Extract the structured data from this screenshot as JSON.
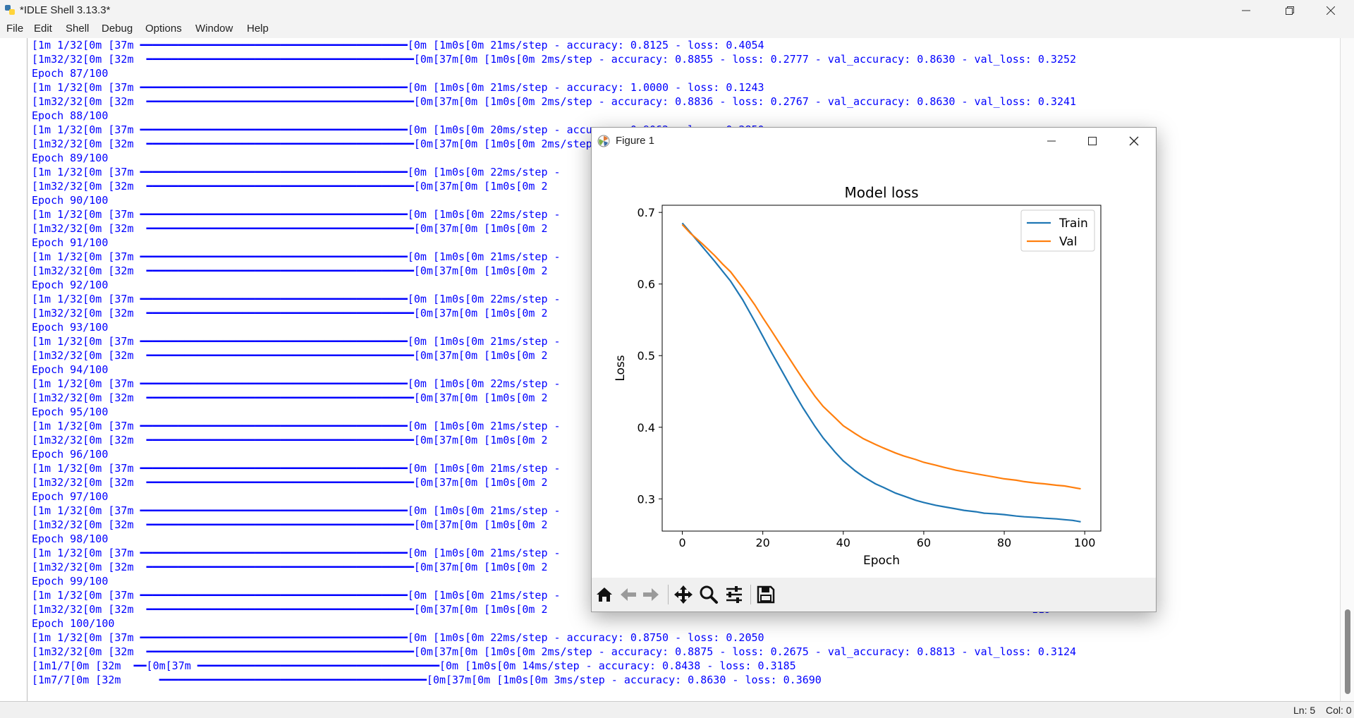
{
  "window": {
    "title": "*IDLE Shell 3.13.3*"
  },
  "menu": [
    "File",
    "Edit",
    "Shell",
    "Debug",
    "Options",
    "Window",
    "Help"
  ],
  "shell_lines": [
    "\u0016[1m 1/32\u0016[0m \u0016[37m ━━━━━━━━━━━━━━━━━━━━━━━━━━━━━━━━━━━━━━━━━━\u0016[0m \u0016[1m0s\u0016[0m 21ms/step - accuracy: 0.8125 - loss: 0.4054  \u0016\u0016\u0016\u0016\u0016\u0016\u0016\u0016\u0016\u0016\u0016\u0016\u0016\u0016\u0016\u0016\u0016\u0016\u0016\u0016\u0016\u0016\u0016\u0016\u0016\u0016\u0016\u0016\u0016\u0016\u0016\u0016\u0016\u0016\u0016\u0016\u0016\u0016\u0016\u0016\u0016\u0016\u0016\u0016\u0016\u0016\u0016",
    "\u0016\u0016\u0016[1m32/32\u0016[0m \u0016[32m  ━━━━━━━━━━━━━━━━━━━━━━━━━━━━━━━━━━━━━━━━━━\u0016[0m\u0016[37m\u0016[0m \u0016[1m0s\u0016[0m 2ms/step - accuracy: 0.8855 - loss: 0.2777 - val_accuracy: 0.8630 - val_loss: 0.3252",
    "Epoch 87/100",
    "\u0016[1m 1/32\u0016[0m \u0016[37m ━━━━━━━━━━━━━━━━━━━━━━━━━━━━━━━━━━━━━━━━━━\u0016[0m \u0016[1m0s\u0016[0m 21ms/step - accuracy: 1.0000 - loss: 0.1243  \u0016\u0016\u0016\u0016\u0016\u0016\u0016\u0016\u0016\u0016\u0016\u0016\u0016\u0016\u0016\u0016\u0016\u0016\u0016\u0016\u0016\u0016\u0016\u0016\u0016\u0016\u0016\u0016\u0016\u0016\u0016\u0016\u0016\u0016\u0016\u0016\u0016\u0016\u0016\u0016\u0016\u0016\u0016\u0016\u0016\u0016\u0016",
    "\u0016\u0016\u0016[1m32/32\u0016[0m \u0016[32m  ━━━━━━━━━━━━━━━━━━━━━━━━━━━━━━━━━━━━━━━━━━\u0016[0m\u0016[37m\u0016[0m \u0016[1m0s\u0016[0m 2ms/step - accuracy: 0.8836 - loss: 0.2767 - val_accuracy: 0.8630 - val_loss: 0.3241",
    "Epoch 88/100",
    "\u0016[1m 1/32\u0016[0m \u0016[37m ━━━━━━━━━━━━━━━━━━━━━━━━━━━━━━━━━━━━━━━━━━\u0016[0m \u0016[1m0s\u0016[0m 20ms/step - accuracy: 0.9062 - loss: 0.2850  \u0016\u0016\u0016\u0016\u0016\u0016\u0016\u0016\u0016\u0016\u0016\u0016\u0016\u0016\u0016\u0016\u0016\u0016\u0016\u0016\u0016\u0016\u0016\u0016\u0016\u0016\u0016\u0016\u0016\u0016\u0016\u0016\u0016\u0016\u0016\u0016\u0016\u0016\u0016\u0016\u0016\u0016\u0016\u0016\u0016\u0016\u0016",
    "\u0016\u0016\u0016[1m32/32\u0016[0m \u0016[32m  ━━━━━━━━━━━━━━━━━━━━━━━━━━━━━━━━━━━━━━━━━━\u0016[0m\u0016[37m\u0016[0m \u0016[1m0s\u0016[0m 2ms/step - accuracy: 0.8858 - loss: 0.2755 - val_accuracy: 0.8630 - val_loss: 0.3231",
    "Epoch 89/100",
    "\u0016[1m 1/32\u0016[0m \u0016[37m ━━━━━━━━━━━━━━━━━━━━━━━━━━━━━━━━━━━━━━━━━━\u0016[0m \u0016[1m0s\u0016[0m 22ms/step -",
    "\u0016\u0016\u0016[1m32/32\u0016[0m \u0016[32m  ━━━━━━━━━━━━━━━━━━━━━━━━━━━━━━━━━━━━━━━━━━\u0016[0m\u0016[37m\u0016[0m \u0016[1m0s\u0016[0m 2                                                                            216",
    "Epoch 90/100",
    "\u0016[1m 1/32\u0016[0m \u0016[37m ━━━━━━━━━━━━━━━━━━━━━━━━━━━━━━━━━━━━━━━━━━\u0016[0m \u0016[1m0s\u0016[0m 22ms/step -",
    "\u0016\u0016\u0016[1m32/32\u0016[0m \u0016[32m  ━━━━━━━━━━━━━━━━━━━━━━━━━━━━━━━━━━━━━━━━━━\u0016[0m\u0016[37m\u0016[0m \u0016[1m0s\u0016[0m 2                                                                            205",
    "Epoch 91/100",
    "\u0016[1m 1/32\u0016[0m \u0016[37m ━━━━━━━━━━━━━━━━━━━━━━━━━━━━━━━━━━━━━━━━━━\u0016[0m \u0016[1m0s\u0016[0m 21ms/step -",
    "\u0016\u0016\u0016[1m32/32\u0016[0m \u0016[32m  ━━━━━━━━━━━━━━━━━━━━━━━━━━━━━━━━━━━━━━━━━━\u0016[0m\u0016[37m\u0016[0m \u0016[1m0s\u0016[0m 2                                                                            197",
    "Epoch 92/100",
    "\u0016[1m 1/32\u0016[0m \u0016[37m ━━━━━━━━━━━━━━━━━━━━━━━━━━━━━━━━━━━━━━━━━━\u0016[0m \u0016[1m0s\u0016[0m 22ms/step -",
    "\u0016\u0016\u0016[1m32/32\u0016[0m \u0016[32m  ━━━━━━━━━━━━━━━━━━━━━━━━━━━━━━━━━━━━━━━━━━\u0016[0m\u0016[37m\u0016[0m \u0016[1m0s\u0016[0m 2                                                                            194",
    "Epoch 93/100",
    "\u0016[1m 1/32\u0016[0m \u0016[37m ━━━━━━━━━━━━━━━━━━━━━━━━━━━━━━━━━━━━━━━━━━\u0016[0m \u0016[1m0s\u0016[0m 21ms/step -",
    "\u0016\u0016\u0016[1m32/32\u0016[0m \u0016[32m  ━━━━━━━━━━━━━━━━━━━━━━━━━━━━━━━━━━━━━━━━━━\u0016[0m\u0016[37m\u0016[0m \u0016[1m0s\u0016[0m 2                                                                            178",
    "Epoch 94/100",
    "\u0016[1m 1/32\u0016[0m \u0016[37m ━━━━━━━━━━━━━━━━━━━━━━━━━━━━━━━━━━━━━━━━━━\u0016[0m \u0016[1m0s\u0016[0m 22ms/step -",
    "\u0016\u0016\u0016[1m32/32\u0016[0m \u0016[32m  ━━━━━━━━━━━━━━━━━━━━━━━━━━━━━━━━━━━━━━━━━━\u0016[0m\u0016[37m\u0016[0m \u0016[1m0s\u0016[0m 2                                                                            176",
    "Epoch 95/100",
    "\u0016[1m 1/32\u0016[0m \u0016[37m ━━━━━━━━━━━━━━━━━━━━━━━━━━━━━━━━━━━━━━━━━━\u0016[0m \u0016[1m0s\u0016[0m 21ms/step -",
    "\u0016\u0016\u0016[1m32/32\u0016[0m \u0016[32m  ━━━━━━━━━━━━━━━━━━━━━━━━━━━━━━━━━━━━━━━━━━\u0016[0m\u0016[37m\u0016[0m \u0016[1m0s\u0016[0m 2                                                                            174",
    "Epoch 96/100",
    "\u0016[1m 1/32\u0016[0m \u0016[37m ━━━━━━━━━━━━━━━━━━━━━━━━━━━━━━━━━━━━━━━━━━\u0016[0m \u0016[1m0s\u0016[0m 21ms/step -",
    "\u0016\u0016\u0016[1m32/32\u0016[0m \u0016[32m  ━━━━━━━━━━━━━━━━━━━━━━━━━━━━━━━━━━━━━━━━━━\u0016[0m\u0016[37m\u0016[0m \u0016[1m0s\u0016[0m 2                                                                            181",
    "Epoch 97/100",
    "\u0016[1m 1/32\u0016[0m \u0016[37m ━━━━━━━━━━━━━━━━━━━━━━━━━━━━━━━━━━━━━━━━━━\u0016[0m \u0016[1m0s\u0016[0m 21ms/step -",
    "\u0016\u0016\u0016[1m32/32\u0016[0m \u0016[32m  ━━━━━━━━━━━━━━━━━━━━━━━━━━━━━━━━━━━━━━━━━━\u0016[0m\u0016[37m\u0016[0m \u0016[1m0s\u0016[0m 2                                                                            148",
    "Epoch 98/100",
    "\u0016[1m 1/32\u0016[0m \u0016[37m ━━━━━━━━━━━━━━━━━━━━━━━━━━━━━━━━━━━━━━━━━━\u0016[0m \u0016[1m0s\u0016[0m 21ms/step -",
    "\u0016\u0016\u0016[1m32/32\u0016[0m \u0016[32m  ━━━━━━━━━━━━━━━━━━━━━━━━━━━━━━━━━━━━━━━━━━\u0016[0m\u0016[37m\u0016[0m \u0016[1m0s\u0016[0m 2                                                                            128",
    "Epoch 99/100",
    "\u0016[1m 1/32\u0016[0m \u0016[37m ━━━━━━━━━━━━━━━━━━━━━━━━━━━━━━━━━━━━━━━━━━\u0016[0m \u0016[1m0s\u0016[0m 21ms/step -",
    "\u0016\u0016\u0016[1m32/32\u0016[0m \u0016[32m  ━━━━━━━━━━━━━━━━━━━━━━━━━━━━━━━━━━━━━━━━━━\u0016[0m\u0016[37m\u0016[0m \u0016[1m0s\u0016[0m 2                                                                            119",
    "Epoch 100/100",
    "\u0016[1m 1/32\u0016[0m \u0016[37m ━━━━━━━━━━━━━━━━━━━━━━━━━━━━━━━━━━━━━━━━━━\u0016[0m \u0016[1m0s\u0016[0m 22ms/step - accuracy: 0.8750 - loss: 0.2050  \u0016\u0016\u0016\u0016\u0016\u0016\u0016\u0016\u0016\u0016\u0016\u0016\u0016\u0016\u0016\u0016\u0016\u0016\u0016\u0016\u0016\u0016\u0016\u0016\u0016\u0016\u0016\u0016\u0016\u0016\u0016\u0016\u0016\u0016\u0016\u0016\u0016\u0016\u0016\u0016\u0016\u0016\u0016\u0016\u0016\u0016\u0016",
    "\u0016\u0016\u0016[1m32/32\u0016[0m \u0016[32m  ━━━━━━━━━━━━━━━━━━━━━━━━━━━━━━━━━━━━━━━━━━\u0016[0m\u0016[37m\u0016[0m \u0016[1m0s\u0016[0m 2ms/step - accuracy: 0.8875 - loss: 0.2675 - val_accuracy: 0.8813 - val_loss: 0.3124",
    "\u0016[1m1/7\u0016[0m \u0016[32m  ━━\u0016[0m\u0016[37m ━━━━━━━━━━━━━━━━━━━━━━━━━━━━━━━━━━━━━━\u0016[0m \u0016[1m0s\u0016[0m 14ms/step - accuracy: 0.8438 - loss: 0.3185  \u0016\u0016\u0016\u0016\u0016\u0016\u0016\u0016\u0016\u0016\u0016\u0016\u0016\u0016\u0016\u0016\u0016\u0016\u0016\u0016\u0016\u0016\u0016\u0016\u0016\u0016\u0016\u0016\u0016\u0016\u0016\u0016\u0016\u0016\u0016\u0016\u0016\u0016\u0016\u0016\u0016\u0016\u0016\u0016\u0016",
    "\u0016\u0016\u0016\u0016\u0016\u0016\u0016[1m7/7\u0016[0m \u0016[32m      ━━━━━━━━━━━━━━━━━━━━━━━━━━━━━━━━━━━━━━━━━━\u0016[0m\u0016[37m\u0016[0m \u0016[1m0s\u0016[0m 3ms/step - accuracy: 0.8630 - loss: 0.3690"
  ],
  "status": {
    "ln": "Ln: 5",
    "col": "Col: 0"
  },
  "figure": {
    "title": "Figure 1",
    "toolbar_icons": [
      "home-icon",
      "back-arrow-icon",
      "forward-arrow-icon",
      "pan-icon",
      "zoom-icon",
      "configure-subplots-icon",
      "save-icon"
    ]
  },
  "chart_data": {
    "type": "line",
    "title": "Model loss",
    "xlabel": "Epoch",
    "ylabel": "Loss",
    "xlim": [
      -5,
      104
    ],
    "ylim": [
      0.255,
      0.71
    ],
    "xticks": [
      0,
      20,
      40,
      60,
      80,
      100
    ],
    "yticks": [
      0.3,
      0.4,
      0.5,
      0.6,
      0.7
    ],
    "grid": false,
    "legend": "top-right",
    "series": [
      {
        "name": "Train",
        "color": "#1f77b4",
        "x": [
          0,
          2,
          5,
          8,
          10,
          12,
          15,
          18,
          20,
          22,
          25,
          28,
          30,
          33,
          35,
          38,
          40,
          43,
          45,
          48,
          50,
          53,
          55,
          58,
          60,
          63,
          65,
          68,
          70,
          73,
          75,
          78,
          80,
          83,
          85,
          88,
          90,
          93,
          95,
          97,
          99
        ],
        "y": [
          0.685,
          0.672,
          0.652,
          0.632,
          0.618,
          0.604,
          0.578,
          0.548,
          0.527,
          0.506,
          0.476,
          0.446,
          0.427,
          0.401,
          0.385,
          0.365,
          0.353,
          0.339,
          0.331,
          0.321,
          0.316,
          0.308,
          0.304,
          0.298,
          0.295,
          0.291,
          0.289,
          0.286,
          0.284,
          0.282,
          0.28,
          0.279,
          0.278,
          0.276,
          0.275,
          0.274,
          0.273,
          0.272,
          0.271,
          0.27,
          0.268
        ]
      },
      {
        "name": "Val",
        "color": "#ff7f0e",
        "x": [
          0,
          2,
          5,
          8,
          10,
          12,
          15,
          18,
          20,
          22,
          25,
          28,
          30,
          33,
          35,
          38,
          40,
          43,
          45,
          48,
          50,
          53,
          55,
          58,
          60,
          63,
          65,
          68,
          70,
          73,
          75,
          78,
          80,
          83,
          85,
          88,
          90,
          93,
          95,
          97,
          99
        ],
        "y": [
          0.683,
          0.671,
          0.656,
          0.64,
          0.628,
          0.617,
          0.595,
          0.571,
          0.553,
          0.536,
          0.51,
          0.484,
          0.467,
          0.443,
          0.429,
          0.413,
          0.402,
          0.391,
          0.384,
          0.376,
          0.371,
          0.364,
          0.36,
          0.355,
          0.351,
          0.347,
          0.344,
          0.34,
          0.338,
          0.335,
          0.333,
          0.33,
          0.328,
          0.326,
          0.324,
          0.322,
          0.321,
          0.319,
          0.318,
          0.316,
          0.314
        ]
      }
    ]
  }
}
